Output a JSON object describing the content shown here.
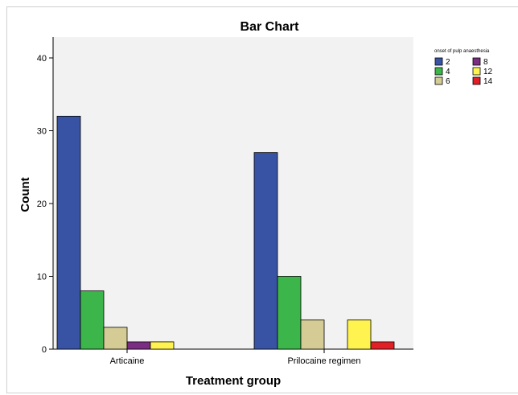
{
  "chart_data": {
    "type": "bar",
    "title": "Bar Chart",
    "xlabel": "Treatment group",
    "ylabel": "Count",
    "categories": [
      "Articaine",
      "Prilocaine regimen"
    ],
    "ylim": [
      0,
      40
    ],
    "yticks": [
      0,
      10,
      20,
      30,
      40
    ],
    "grid": false,
    "legend": {
      "title": "onset of pulp anaesthesia",
      "placement": "top-right"
    },
    "series": [
      {
        "name": "2",
        "color": "#3953a4",
        "values": [
          32,
          27
        ]
      },
      {
        "name": "4",
        "color": "#3cb54a",
        "values": [
          8,
          10
        ]
      },
      {
        "name": "6",
        "color": "#d4cc94",
        "values": [
          3,
          4
        ]
      },
      {
        "name": "8",
        "color": "#7b2d83",
        "values": [
          1,
          0
        ]
      },
      {
        "name": "12",
        "color": "#fff34f",
        "values": [
          1,
          4
        ]
      },
      {
        "name": "14",
        "color": "#e31f26",
        "values": [
          0,
          1
        ]
      }
    ]
  }
}
